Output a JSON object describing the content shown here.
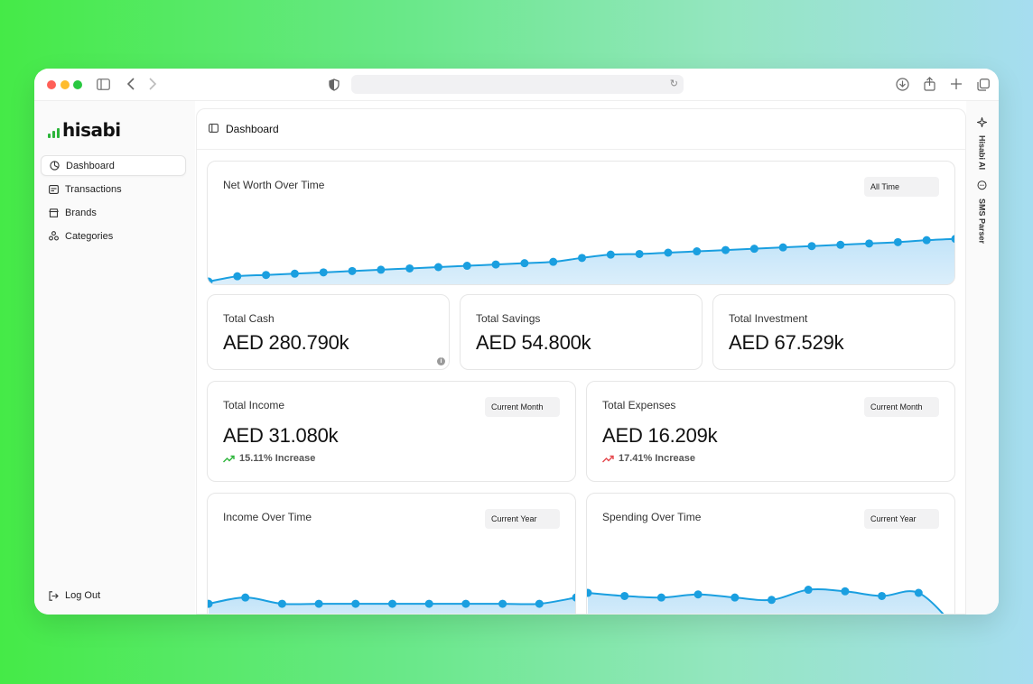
{
  "app": {
    "logo_text": "hisabi"
  },
  "sidebar": {
    "items": [
      {
        "label": "Dashboard",
        "icon": "dashboard-icon",
        "active": true
      },
      {
        "label": "Transactions",
        "icon": "transactions-icon",
        "active": false
      },
      {
        "label": "Brands",
        "icon": "brands-icon",
        "active": false
      },
      {
        "label": "Categories",
        "icon": "categories-icon",
        "active": false
      }
    ],
    "logout_label": "Log Out"
  },
  "header": {
    "title": "Dashboard"
  },
  "right_panel": {
    "ai_label": "Hisabi AI",
    "sms_label": "SMS Parser"
  },
  "colors": {
    "accent": "#1a9fe0",
    "fill": "#bfe2f8",
    "positive": "#2cb53a",
    "negative": "#e5484d"
  },
  "net_worth": {
    "title": "Net Worth Over Time",
    "filter": "All Time"
  },
  "stats": [
    {
      "title": "Total Cash",
      "value": "AED 280.790k"
    },
    {
      "title": "Total Savings",
      "value": "AED 54.800k"
    },
    {
      "title": "Total Investment",
      "value": "AED 67.529k"
    }
  ],
  "income": {
    "title": "Total Income",
    "filter": "Current Month",
    "value": "AED 31.080k",
    "change": "15.11% Increase"
  },
  "expenses": {
    "title": "Total Expenses",
    "filter": "Current Month",
    "value": "AED 16.209k",
    "change": "17.41% Increase"
  },
  "income_over_time": {
    "title": "Income Over Time",
    "filter": "Current Year"
  },
  "spending_over_time": {
    "title": "Spending Over Time",
    "filter": "Current Year"
  },
  "chart_data": [
    {
      "type": "area",
      "name": "net-worth",
      "values": [
        0,
        8,
        10,
        12,
        14,
        16,
        18,
        20,
        22,
        24,
        26,
        28,
        30,
        36,
        41,
        42,
        44,
        46,
        48,
        50,
        52,
        54,
        56,
        58,
        60,
        63,
        65
      ],
      "ylim": [
        0,
        110
      ]
    },
    {
      "type": "area",
      "name": "income",
      "values": [
        30,
        38,
        30,
        30,
        30,
        30,
        30,
        30,
        30,
        30,
        38
      ],
      "ylim": [
        0,
        110
      ]
    },
    {
      "type": "area",
      "name": "spending",
      "values": [
        44,
        40,
        38,
        42,
        38,
        35,
        48,
        46,
        40,
        44,
        0
      ],
      "ylim": [
        0,
        110
      ]
    }
  ]
}
